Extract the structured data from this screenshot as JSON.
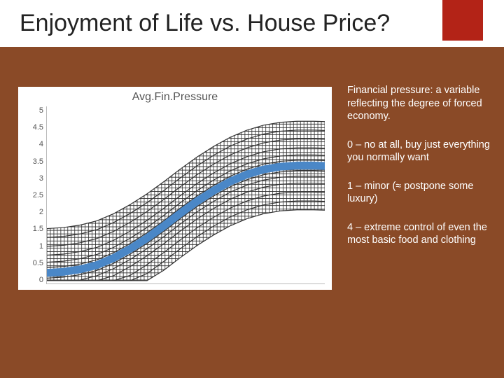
{
  "slide": {
    "title": "Enjoyment of Life vs. House Price?",
    "accent_color": "#b32317",
    "background_color": "#8a4a27",
    "header_bg": "#ffffff"
  },
  "chart": {
    "type": "line-band",
    "title": "Avg.Fin.Pressure",
    "title_color": "#555555",
    "title_fontsize": 16,
    "panel_bg": "#ffffff",
    "axis_color": "#bbbbbb",
    "ylim": [
      0,
      5
    ],
    "ytick_step": 0.5,
    "yticks": [
      "5",
      "4.5",
      "4",
      "3.5",
      "3",
      "2.5",
      "2",
      "1.5",
      "1",
      "0.5",
      "0"
    ],
    "ytick_fontsize": 11,
    "ytick_color": "#555555",
    "xlim_norm": [
      0,
      1
    ],
    "main_series": {
      "color": "#4a87c7",
      "stroke_width": 11,
      "points": [
        [
          0.0,
          0.3
        ],
        [
          0.06,
          0.33
        ],
        [
          0.12,
          0.4
        ],
        [
          0.18,
          0.52
        ],
        [
          0.24,
          0.72
        ],
        [
          0.3,
          0.98
        ],
        [
          0.36,
          1.28
        ],
        [
          0.42,
          1.62
        ],
        [
          0.48,
          1.98
        ],
        [
          0.54,
          2.32
        ],
        [
          0.6,
          2.62
        ],
        [
          0.66,
          2.88
        ],
        [
          0.72,
          3.08
        ],
        [
          0.78,
          3.22
        ],
        [
          0.84,
          3.3
        ],
        [
          0.9,
          3.33
        ],
        [
          0.96,
          3.33
        ],
        [
          1.0,
          3.32
        ]
      ]
    },
    "upper_series_offsets": [
      0.05,
      0.15,
      0.3,
      0.5,
      0.75,
      1.0,
      1.25
    ],
    "lower_series_offsets": [
      0.05,
      0.15,
      0.3,
      0.5,
      0.75,
      1.0,
      1.25
    ],
    "hatch": {
      "stroke": "#333333",
      "stroke_width": 0.85,
      "band_upper_limit": 4.9,
      "band_lower_limit": 0.08
    }
  },
  "sidebar": {
    "text_color": "#ffffff",
    "fontsize": 14.5,
    "paragraphs": [
      "Financial pressure: a variable reflecting the degree of forced economy.",
      "0 – no at all, buy just everything you normally want",
      "1 – minor (≈ postpone some luxury)",
      "4 – extreme control of even the most basic food and clothing"
    ]
  }
}
